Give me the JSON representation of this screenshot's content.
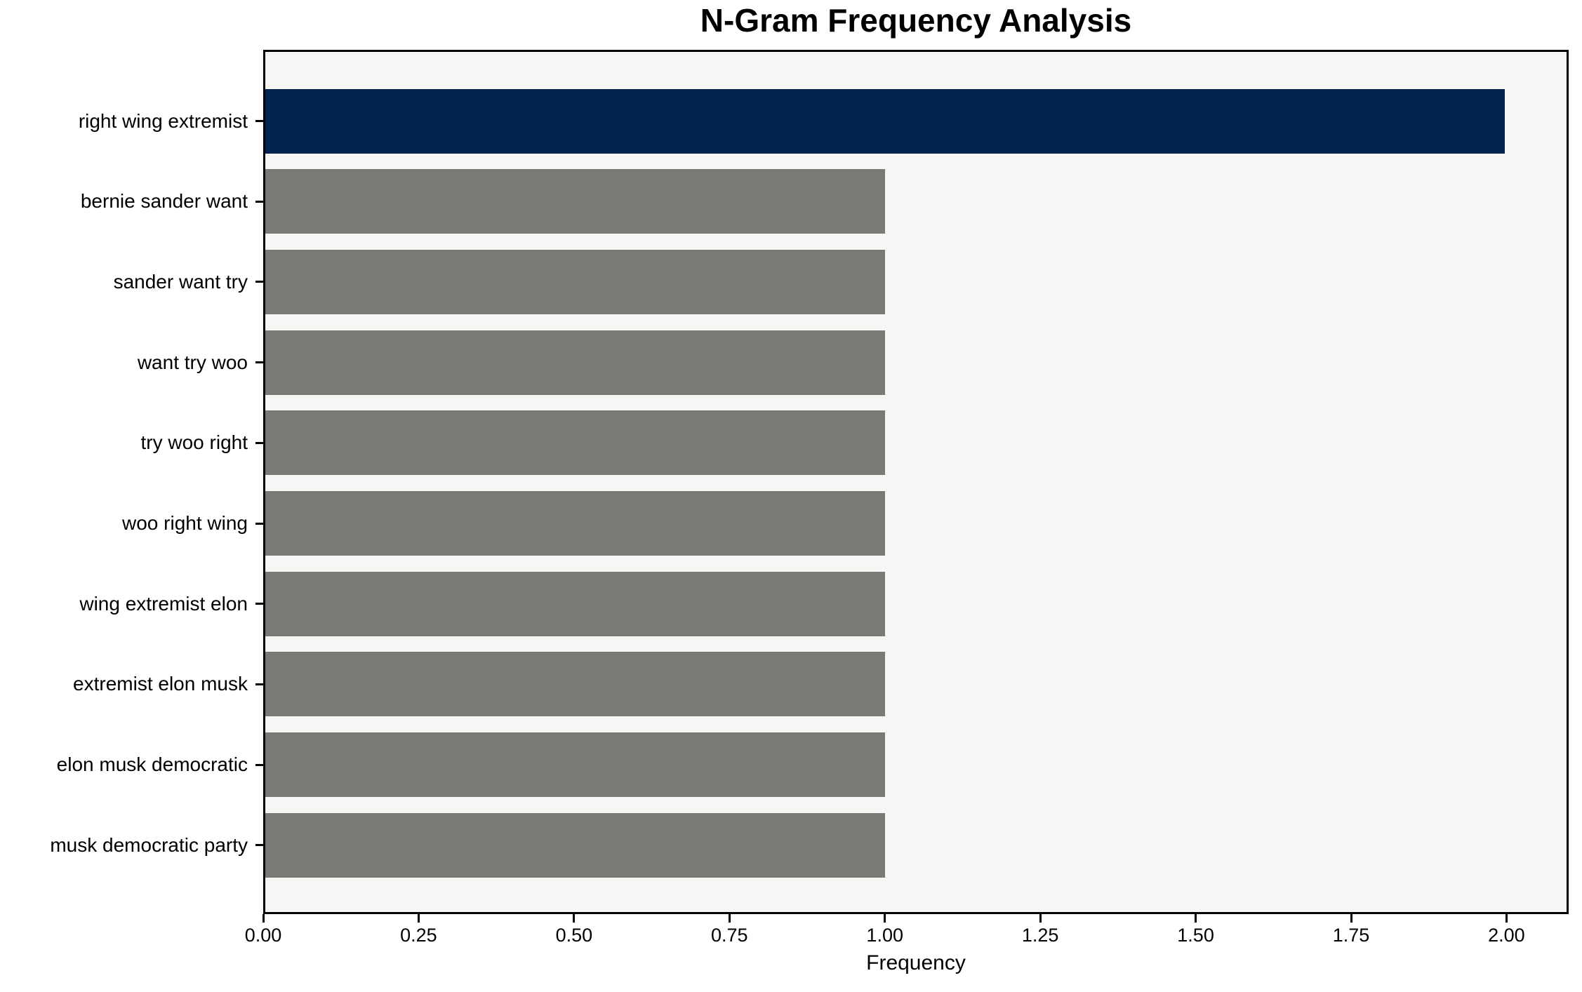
{
  "chart_data": {
    "type": "bar",
    "orientation": "horizontal",
    "title": "N-Gram Frequency Analysis",
    "xlabel": "Frequency",
    "ylabel": "",
    "categories": [
      "right wing extremist",
      "bernie sander want",
      "sander want try",
      "want try woo",
      "try woo right",
      "woo right wing",
      "wing extremist elon",
      "extremist elon musk",
      "elon musk democratic",
      "musk democratic party"
    ],
    "values": [
      2.0,
      1.0,
      1.0,
      1.0,
      1.0,
      1.0,
      1.0,
      1.0,
      1.0,
      1.0
    ],
    "bar_colors": [
      "#02244f",
      "#7a7976",
      "#7a7976",
      "#7a7976",
      "#7a7976",
      "#7a7976",
      "#7a7976",
      "#7a7976",
      "#7a7976",
      "#7a7976"
    ],
    "xlim": [
      0,
      2.1
    ],
    "xticks": [
      {
        "value": 0.0,
        "label": "0.00"
      },
      {
        "value": 0.25,
        "label": "0.25"
      },
      {
        "value": 0.5,
        "label": "0.50"
      },
      {
        "value": 0.75,
        "label": "0.75"
      },
      {
        "value": 1.0,
        "label": "1.00"
      },
      {
        "value": 1.25,
        "label": "1.25"
      },
      {
        "value": 1.5,
        "label": "1.50"
      },
      {
        "value": 1.75,
        "label": "1.75"
      },
      {
        "value": 2.0,
        "label": "2.00"
      }
    ],
    "grid": false,
    "legend": "none",
    "colors": {
      "plot_background": "#f6f6f4",
      "page_background": "#ffffff",
      "spine": "#000000",
      "text": "#000000",
      "highlight_bar": "#02244f",
      "default_bar": "#7a7976"
    }
  }
}
